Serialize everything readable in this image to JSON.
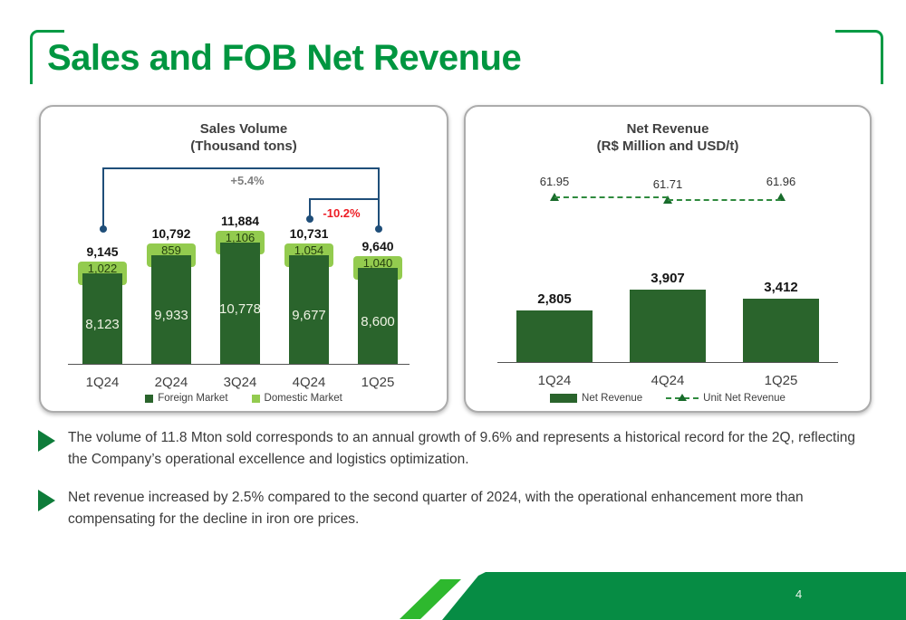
{
  "header": {
    "title": "Sales and FOB Net Revenue"
  },
  "colors": {
    "title_green": "#009640",
    "bar_dark_green": "#2A642C",
    "cap_light_green": "#93CB4F",
    "bracket_blue": "#1F4E79",
    "annotation_gray": "#7F7F7F",
    "annotation_red": "#ED1C24",
    "unit_line_green": "#2F8A3E",
    "footer_banner_green": "#068C44",
    "footer_stripe_green": "#2EB82E"
  },
  "chart_data": [
    {
      "type": "bar",
      "title": "Sales Volume",
      "subtitle": "(Thousand tons)",
      "categories": [
        "1Q24",
        "2Q24",
        "3Q24",
        "4Q24",
        "1Q25"
      ],
      "series": [
        {
          "name": "Foreign Market",
          "values": [
            8123,
            9933,
            10778,
            9677,
            8600
          ],
          "color": "#2A642C"
        },
        {
          "name": "Domestic Market",
          "values": [
            1022,
            859,
            1106,
            1054,
            1040
          ],
          "color": "#93CB4F"
        }
      ],
      "totals": [
        9145,
        10792,
        11884,
        10731,
        9640
      ],
      "annotations": [
        {
          "label": "+5.4%",
          "from_index": 0,
          "to_index": 4,
          "color": "#7F7F7F"
        },
        {
          "label": "-10.2%",
          "from_index": 3,
          "to_index": 4,
          "color": "#ED1C24"
        }
      ],
      "ylim": [
        0,
        11884
      ],
      "grid": false,
      "legend_position": "bottom"
    },
    {
      "type": "bar",
      "title": "Net Revenue",
      "subtitle": "(R$ Million and USD/t)",
      "categories": [
        "1Q24",
        "4Q24",
        "1Q25"
      ],
      "series": [
        {
          "name": "Net Revenue",
          "type": "bar",
          "values": [
            2805,
            3907,
            3412
          ],
          "color": "#2A642C"
        },
        {
          "name": "Unit Net Revenue",
          "type": "line",
          "values": [
            61.95,
            61.71,
            61.96
          ],
          "color": "#2F8A3E",
          "line_style": "dashed",
          "marker": "triangle"
        }
      ],
      "ylim": [
        0,
        3907
      ],
      "grid": false,
      "legend_position": "bottom"
    }
  ],
  "bullets": [
    {
      "text": "The volume of 11.8 Mton sold corresponds to an annual growth of 9.6% and represents a historical record for the 2Q, reflecting the Company’s operational excellence and logistics optimization."
    },
    {
      "text": "Net revenue increased by 2.5% compared to the second quarter of 2024, with the operational enhancement more than compensating for the decline in iron ore prices."
    }
  ],
  "footer": {
    "page_number": "4"
  }
}
